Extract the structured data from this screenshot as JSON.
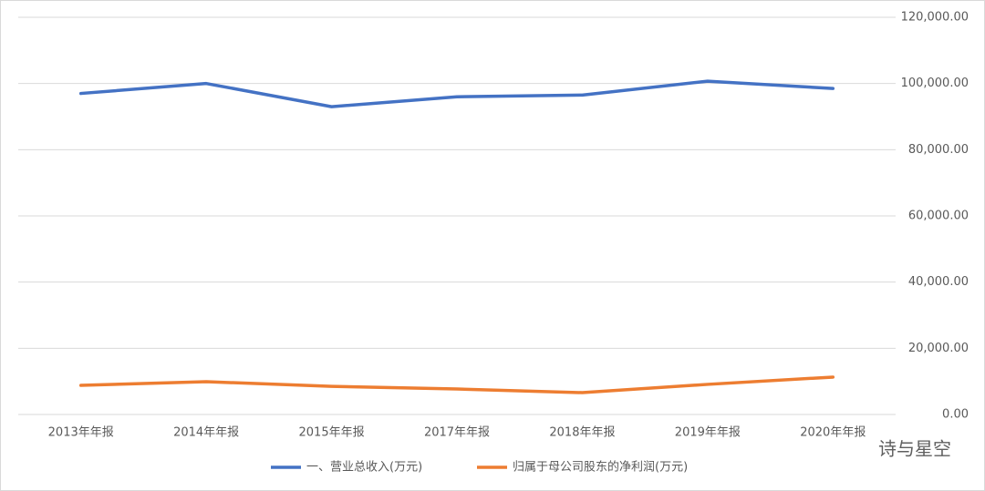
{
  "chart_data": {
    "type": "line",
    "categories": [
      "2013年年报",
      "2014年年报",
      "2015年年报",
      "2017年年报",
      "2018年年报",
      "2019年年报",
      "2020年年报"
    ],
    "series": [
      {
        "name": "一、营业总收入(万元)",
        "color": "#4472c4",
        "values": [
          97000,
          100000,
          93000,
          96000,
          96500,
          100700,
          98500
        ]
      },
      {
        "name": "归属于母公司股东的净利润(万元)",
        "color": "#ed7d31",
        "values": [
          8800,
          9900,
          8500,
          7700,
          6600,
          9100,
          11300
        ]
      }
    ],
    "ylim": [
      0,
      120000
    ],
    "yticks": [
      {
        "value": 0,
        "label": "0.00"
      },
      {
        "value": 20000,
        "label": "20,000.00"
      },
      {
        "value": 40000,
        "label": "40,000.00"
      },
      {
        "value": 60000,
        "label": "60,000.00"
      },
      {
        "value": 80000,
        "label": "80,000.00"
      },
      {
        "value": 100000,
        "label": "100,000.00"
      },
      {
        "value": 120000,
        "label": "120,000.00"
      }
    ],
    "grid": true,
    "y_axis_side": "right",
    "legend": "bottom",
    "watermark": "诗与星空"
  }
}
